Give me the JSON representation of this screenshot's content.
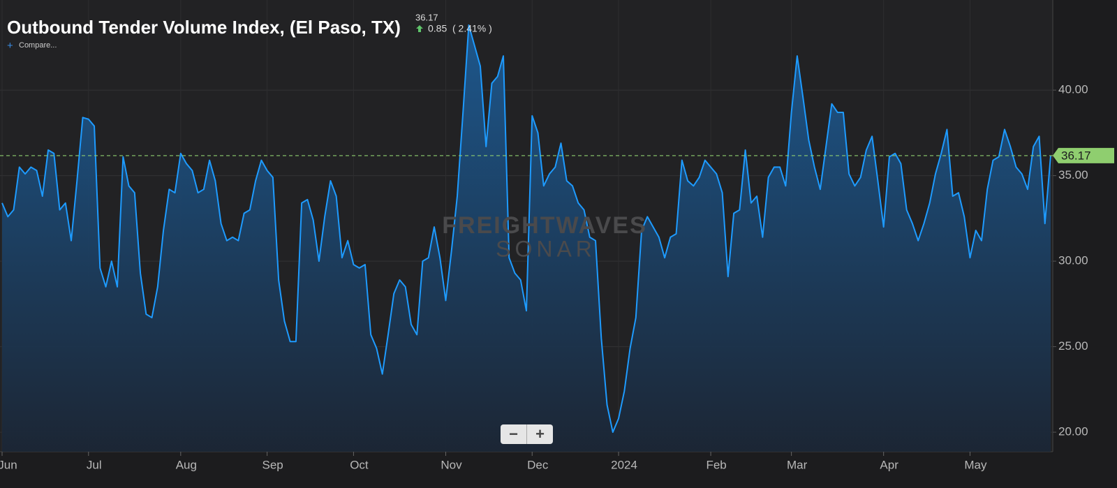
{
  "chart_data": {
    "type": "area",
    "title": "Outbound Tender Volume Index, (El Paso, TX)",
    "current_value": "36.17",
    "change": "0.85",
    "change_percent": "( 2.41% )",
    "compare_label": "Compare...",
    "watermark": [
      "FREIGHTWAVES",
      "SONAR"
    ],
    "zoom_controls": [
      "−",
      "+"
    ],
    "color": "#1e9bff",
    "grid": true,
    "y_axis_side": "right",
    "reference_line": {
      "value": 36.17,
      "label": "36.17",
      "color": "#8fce6f"
    },
    "ylim": [
      18.86,
      45.27
    ],
    "yticks": [
      {
        "value": 20,
        "label": "20.00"
      },
      {
        "value": 25,
        "label": "25.00"
      },
      {
        "value": 30,
        "label": "30.00"
      },
      {
        "value": 35,
        "label": "35.00"
      },
      {
        "value": 40,
        "label": "40.00"
      }
    ],
    "categories": [
      "Jun",
      null,
      null,
      null,
      null,
      null,
      null,
      null,
      null,
      null,
      null,
      null,
      null,
      null,
      null,
      "Jul",
      null,
      null,
      null,
      null,
      null,
      null,
      null,
      null,
      null,
      null,
      null,
      null,
      null,
      null,
      null,
      "Aug",
      null,
      null,
      null,
      null,
      null,
      null,
      null,
      null,
      null,
      null,
      null,
      null,
      null,
      null,
      "Sep",
      null,
      null,
      null,
      null,
      null,
      null,
      null,
      null,
      null,
      null,
      null,
      null,
      null,
      null,
      "Oct",
      null,
      null,
      null,
      null,
      null,
      null,
      null,
      null,
      null,
      null,
      null,
      null,
      null,
      null,
      null,
      "Nov",
      null,
      null,
      null,
      null,
      null,
      null,
      null,
      null,
      null,
      null,
      null,
      null,
      null,
      null,
      "Dec",
      null,
      null,
      null,
      null,
      null,
      null,
      null,
      null,
      null,
      null,
      null,
      null,
      null,
      null,
      "2024",
      null,
      null,
      null,
      null,
      null,
      null,
      null,
      null,
      null,
      null,
      null,
      null,
      null,
      null,
      null,
      "Feb",
      null,
      null,
      null,
      null,
      null,
      null,
      null,
      null,
      null,
      null,
      null,
      null,
      null,
      "Mar",
      null,
      null,
      null,
      null,
      null,
      null,
      null,
      null,
      null,
      null,
      null,
      null,
      null,
      null,
      null,
      "Apr",
      null,
      null,
      null,
      null,
      null,
      null,
      null,
      null,
      null,
      null,
      null,
      null,
      null,
      null,
      "May",
      null,
      null,
      null,
      null,
      null,
      null,
      null,
      null,
      null,
      null,
      null,
      null,
      null,
      null
    ],
    "values": [
      33.4,
      32.6,
      33.0,
      35.5,
      35.1,
      35.5,
      35.3,
      33.8,
      36.5,
      36.3,
      33.0,
      33.4,
      31.2,
      34.7,
      38.4,
      38.3,
      37.9,
      29.6,
      28.5,
      30.0,
      28.5,
      36.1,
      34.4,
      34.0,
      29.3,
      26.9,
      26.7,
      28.5,
      31.8,
      34.2,
      34.0,
      36.3,
      35.7,
      35.3,
      34.0,
      34.2,
      35.9,
      34.7,
      32.2,
      31.2,
      31.4,
      31.2,
      32.8,
      33.0,
      34.7,
      35.9,
      35.3,
      34.9,
      28.9,
      26.5,
      25.3,
      25.3,
      33.4,
      33.6,
      32.4,
      30.0,
      32.6,
      34.7,
      33.8,
      30.2,
      31.2,
      29.8,
      29.6,
      29.8,
      25.7,
      24.9,
      23.4,
      25.7,
      28.1,
      28.9,
      28.5,
      26.3,
      25.7,
      30.0,
      30.2,
      32.0,
      30.2,
      27.7,
      30.6,
      33.8,
      38.7,
      43.8,
      42.6,
      41.4,
      36.7,
      40.4,
      40.8,
      42.0,
      30.2,
      29.3,
      28.9,
      27.1,
      38.5,
      37.5,
      34.4,
      35.1,
      35.5,
      36.9,
      34.7,
      34.4,
      33.4,
      33.0,
      31.4,
      31.2,
      25.5,
      21.6,
      20.0,
      20.8,
      22.4,
      24.9,
      26.7,
      31.8,
      32.6,
      32.0,
      31.4,
      30.2,
      31.4,
      31.6,
      35.9,
      34.7,
      34.4,
      34.9,
      35.9,
      35.5,
      35.1,
      34.0,
      29.1,
      32.8,
      33.0,
      36.5,
      33.4,
      33.8,
      31.4,
      34.9,
      35.5,
      35.5,
      34.4,
      38.7,
      42.0,
      39.6,
      37.1,
      35.5,
      34.2,
      36.7,
      39.2,
      38.7,
      38.7,
      35.1,
      34.4,
      34.9,
      36.5,
      37.3,
      34.7,
      32.0,
      36.1,
      36.3,
      35.7,
      33.0,
      32.2,
      31.2,
      32.2,
      33.4,
      35.1,
      36.3,
      37.7,
      33.8,
      34.0,
      32.6,
      30.2,
      31.8,
      31.2,
      34.2,
      35.9,
      36.1,
      37.7,
      36.7,
      35.5,
      35.1,
      34.2,
      36.7,
      37.3,
      32.2,
      36.17
    ]
  }
}
